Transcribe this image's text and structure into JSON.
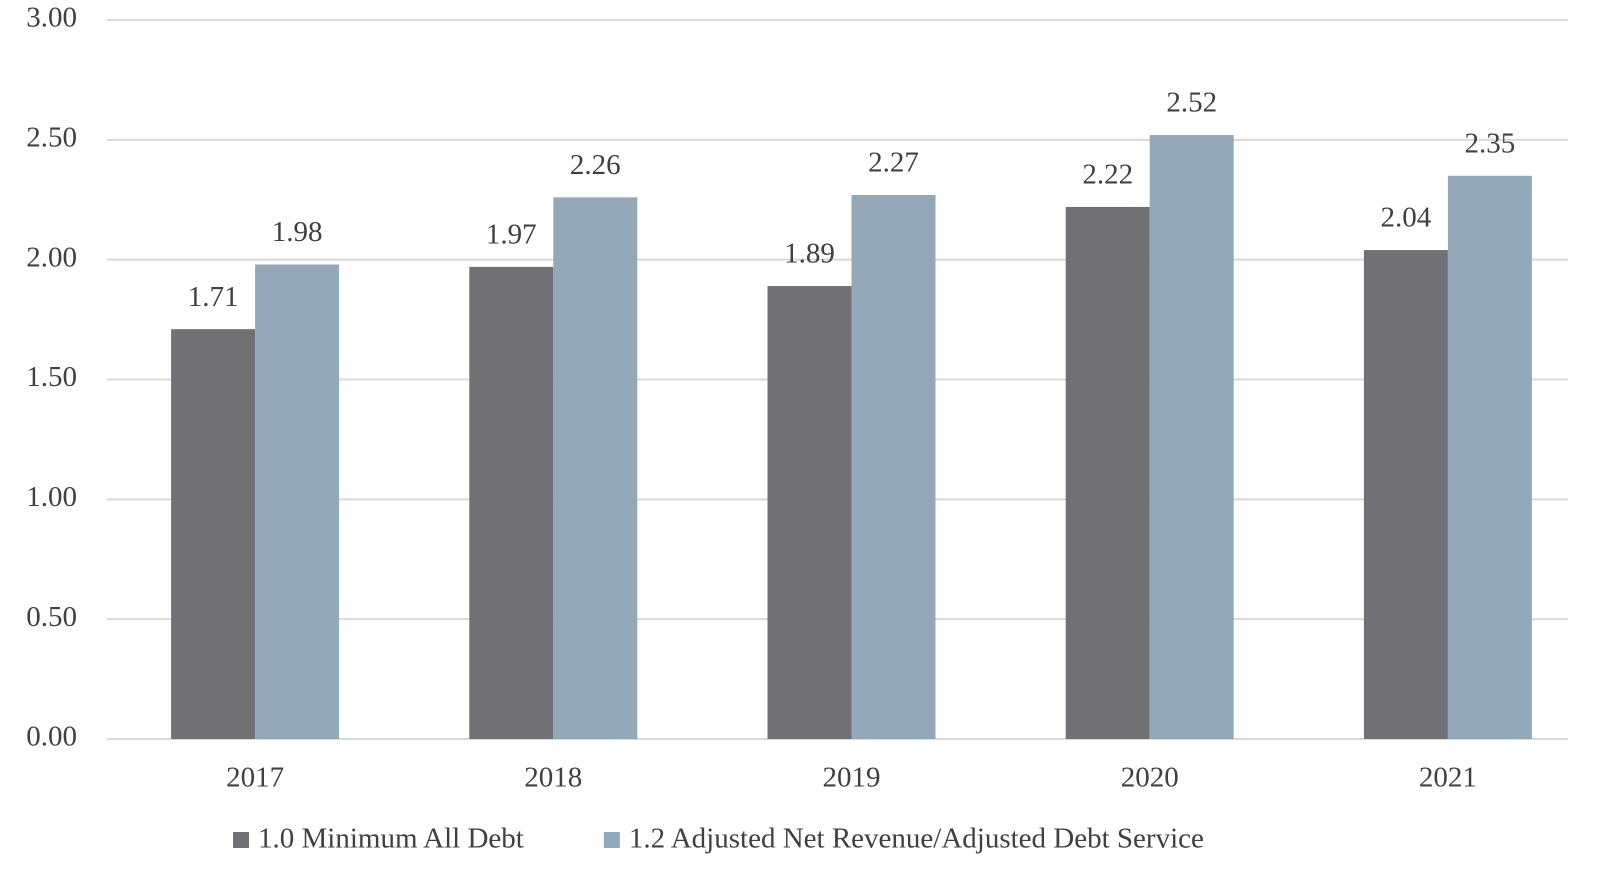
{
  "chart_data": {
    "type": "bar",
    "categories": [
      "2017",
      "2018",
      "2019",
      "2020",
      "2021"
    ],
    "series": [
      {
        "name": "1.0 Minimum All Debt",
        "color": "#717075",
        "values": [
          1.71,
          1.97,
          1.89,
          2.22,
          2.04
        ]
      },
      {
        "name": "1.2 Adjusted Net Revenue/Adjusted Debt Service",
        "color": "#93a9b9",
        "values": [
          1.98,
          2.26,
          2.27,
          2.52,
          2.35
        ]
      }
    ],
    "ylim": [
      0,
      3
    ],
    "yticks": [
      {
        "value": 0,
        "label": "0.00"
      },
      {
        "value": 0.5,
        "label": "0.50"
      },
      {
        "value": 1,
        "label": "1.00"
      },
      {
        "value": 1.5,
        "label": "1.50"
      },
      {
        "value": 2,
        "label": "2.00"
      },
      {
        "value": 2.5,
        "label": "2.50"
      },
      {
        "value": 3,
        "label": "3.00"
      }
    ],
    "grid": true,
    "legend": "bottom"
  }
}
